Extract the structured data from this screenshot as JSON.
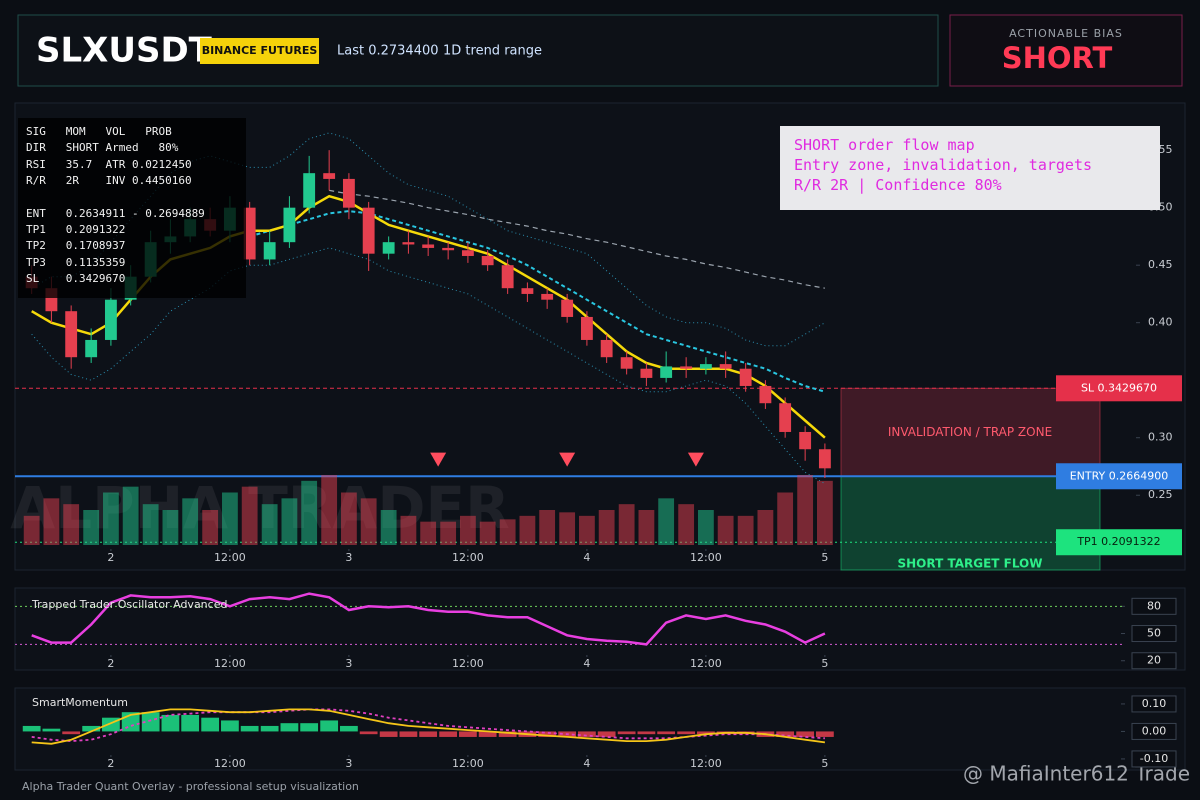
{
  "header": {
    "symbol": "SLXUSDT",
    "exchange": "BINANCE FUTURES",
    "last": "Last 0.2734400",
    "range": "1D trend range"
  },
  "bias": {
    "caption": "ACTIONABLE BIAS",
    "value": "SHORT"
  },
  "info_panel": {
    "rows": [
      "SIG   MOM   VOL   PROB",
      "DIR   SHORT Armed   80%",
      "RSI   35.7  ATR 0.0212450",
      "R/R   2R    INV 0.4450160"
    ],
    "levels": [
      "ENT   0.2634911 - 0.2694889",
      "TP1   0.2091322",
      "TP2   0.1708937",
      "TP3   0.1135359",
      "SL    0.3429670"
    ]
  },
  "annotation": {
    "lines": [
      "SHORT order flow map",
      "Entry zone, invalidation, targets",
      "R/R 2R | Confidence 80%"
    ]
  },
  "watermark": "ALPHA TRADER",
  "footer": "Alpha Trader Quant Overlay - professional setup visualization",
  "credit": "@ MafiaInter612 Trade",
  "chart_data": [
    {
      "type": "candlestick",
      "up_color": "#22c98f",
      "down_color": "#e5404f",
      "x": [
        1.667,
        1.75,
        1.833,
        1.917,
        2,
        2.083,
        2.167,
        2.25,
        2.333,
        2.417,
        2.5,
        2.583,
        2.667,
        2.75,
        2.833,
        2.917,
        3,
        3.083,
        3.167,
        3.25,
        3.333,
        3.417,
        3.5,
        3.583,
        3.667,
        3.75,
        3.833,
        3.917,
        4,
        4.083,
        4.167,
        4.25,
        4.333,
        4.417,
        4.5,
        4.583,
        4.667,
        4.75,
        4.833,
        4.917,
        5
      ],
      "open": [
        0.44,
        0.43,
        0.41,
        0.37,
        0.385,
        0.42,
        0.44,
        0.47,
        0.475,
        0.49,
        0.48,
        0.5,
        0.455,
        0.47,
        0.5,
        0.53,
        0.525,
        0.5,
        0.46,
        0.47,
        0.468,
        0.465,
        0.463,
        0.458,
        0.45,
        0.43,
        0.425,
        0.42,
        0.405,
        0.385,
        0.37,
        0.36,
        0.352,
        0.362,
        0.36,
        0.364,
        0.36,
        0.345,
        0.33,
        0.305,
        0.29
      ],
      "high": [
        0.45,
        0.44,
        0.415,
        0.395,
        0.43,
        0.45,
        0.48,
        0.49,
        0.5,
        0.5,
        0.51,
        0.505,
        0.48,
        0.51,
        0.545,
        0.55,
        0.53,
        0.505,
        0.475,
        0.48,
        0.475,
        0.47,
        0.47,
        0.463,
        0.455,
        0.435,
        0.43,
        0.425,
        0.41,
        0.39,
        0.375,
        0.365,
        0.375,
        0.37,
        0.37,
        0.375,
        0.365,
        0.35,
        0.335,
        0.31,
        0.295
      ],
      "low": [
        0.425,
        0.4,
        0.36,
        0.365,
        0.38,
        0.415,
        0.435,
        0.46,
        0.47,
        0.475,
        0.47,
        0.45,
        0.45,
        0.465,
        0.495,
        0.515,
        0.49,
        0.445,
        0.455,
        0.46,
        0.458,
        0.455,
        0.452,
        0.445,
        0.425,
        0.418,
        0.412,
        0.4,
        0.38,
        0.365,
        0.355,
        0.345,
        0.348,
        0.352,
        0.355,
        0.352,
        0.34,
        0.325,
        0.3,
        0.28,
        0.265
      ],
      "close": [
        0.43,
        0.41,
        0.37,
        0.385,
        0.42,
        0.44,
        0.47,
        0.475,
        0.49,
        0.48,
        0.5,
        0.455,
        0.47,
        0.5,
        0.53,
        0.525,
        0.5,
        0.46,
        0.47,
        0.468,
        0.465,
        0.463,
        0.458,
        0.45,
        0.43,
        0.425,
        0.42,
        0.405,
        0.385,
        0.37,
        0.36,
        0.352,
        0.362,
        0.36,
        0.364,
        0.36,
        0.345,
        0.33,
        0.305,
        0.29,
        0.2734
      ],
      "volume": [
        25,
        40,
        35,
        30,
        45,
        50,
        35,
        30,
        40,
        30,
        45,
        50,
        35,
        40,
        55,
        60,
        45,
        40,
        30,
        25,
        20,
        20,
        25,
        20,
        22,
        25,
        30,
        28,
        25,
        30,
        35,
        30,
        40,
        35,
        30,
        25,
        25,
        30,
        45,
        60,
        55
      ],
      "lines": [
        {
          "color": "#2a8fb0",
          "dash": "1 3",
          "width": 1,
          "values": [
            0.43,
            0.44,
            0.44,
            0.45,
            0.47,
            0.49,
            0.51,
            0.53,
            0.54,
            0.545,
            0.54,
            0.535,
            0.535,
            0.545,
            0.56,
            0.565,
            0.56,
            0.545,
            0.53,
            0.52,
            0.515,
            0.51,
            0.5,
            0.49,
            0.48,
            0.475,
            0.47,
            0.465,
            0.46,
            0.445,
            0.43,
            0.415,
            0.405,
            0.4,
            0.4,
            0.395,
            0.385,
            0.38,
            0.38,
            0.39,
            0.4
          ]
        },
        {
          "color": "#2a8fb0",
          "dash": "1 3",
          "width": 1,
          "values": [
            0.39,
            0.37,
            0.355,
            0.35,
            0.36,
            0.375,
            0.39,
            0.41,
            0.42,
            0.43,
            0.445,
            0.45,
            0.45,
            0.455,
            0.46,
            0.465,
            0.46,
            0.455,
            0.445,
            0.44,
            0.435,
            0.43,
            0.425,
            0.415,
            0.405,
            0.395,
            0.385,
            0.375,
            0.365,
            0.355,
            0.345,
            0.34,
            0.34,
            0.345,
            0.35,
            0.345,
            0.33,
            0.31,
            0.29,
            0.27,
            0.26
          ]
        },
        {
          "color": "#9aa3ad",
          "dash": "5 4",
          "width": 1.2,
          "values": [
            null,
            null,
            null,
            null,
            null,
            null,
            null,
            null,
            null,
            null,
            null,
            null,
            null,
            null,
            null,
            0.515,
            0.512,
            0.51,
            0.507,
            0.504,
            0.5,
            0.497,
            0.494,
            0.49,
            0.487,
            0.484,
            0.48,
            0.477,
            0.473,
            0.47,
            0.466,
            0.462,
            0.458,
            0.455,
            0.451,
            0.448,
            0.444,
            0.44,
            0.437,
            0.433,
            0.43
          ]
        },
        {
          "color": "#29c6e0",
          "dash": "4 3",
          "width": 2,
          "values": [
            null,
            null,
            null,
            null,
            null,
            null,
            null,
            null,
            null,
            null,
            null,
            0.475,
            0.48,
            0.485,
            0.49,
            0.495,
            0.497,
            0.495,
            0.49,
            0.485,
            0.48,
            0.475,
            0.47,
            0.465,
            0.458,
            0.45,
            0.44,
            0.43,
            0.42,
            0.41,
            0.4,
            0.39,
            0.385,
            0.38,
            0.375,
            0.37,
            0.365,
            0.36,
            0.352,
            0.345,
            0.34
          ]
        },
        {
          "color": "#f5d90a",
          "dash": "none",
          "width": 2.5,
          "values": [
            0.41,
            0.4,
            0.395,
            0.39,
            0.4,
            0.42,
            0.44,
            0.455,
            0.46,
            0.465,
            0.475,
            0.48,
            0.48,
            0.485,
            0.5,
            0.51,
            0.505,
            0.495,
            0.485,
            0.48,
            0.475,
            0.47,
            0.465,
            0.46,
            0.45,
            0.44,
            0.43,
            0.42,
            0.405,
            0.39,
            0.375,
            0.365,
            0.36,
            0.36,
            0.36,
            0.36,
            0.355,
            0.345,
            0.33,
            0.315,
            0.3
          ]
        }
      ],
      "markers": {
        "color": "#ff4d5e",
        "x": [
          3.375,
          3.917,
          4.458
        ],
        "values": [
          0.281,
          0.281,
          0.281
        ]
      },
      "zones": [
        {
          "label": "INVALIDATION / TRAP ZONE",
          "color": "#c2334a",
          "text_color": "#ff5a6e",
          "range": [
            0.342967,
            0.26649
          ]
        },
        {
          "label": "SHORT TARGET FLOW",
          "color": "#15c26e",
          "text_color": "#2ef08a",
          "range": [
            0.26649,
            0.185
          ]
        }
      ],
      "levels": [
        {
          "label": "SL 0.3429670",
          "value": 0.342967,
          "color": "#e5304a",
          "text_color": "#ffffff",
          "dash": "4 3"
        },
        {
          "label": "ENTRY 0.2664900",
          "value": 0.26649,
          "color": "#2f7de1",
          "text_color": "#ffffff",
          "dash": "none"
        },
        {
          "label": "TP1 0.2091322",
          "value": 0.2091322,
          "color": "#1de37e",
          "text_color": "#07210f",
          "dash": "2 3"
        }
      ],
      "xlim": [
        1.597,
        6.324
      ],
      "ylim": [
        0.185,
        0.591
      ],
      "xticks": [
        2,
        {
          "value": 2.5,
          "label": "12:00"
        },
        3,
        {
          "value": 3.5,
          "label": "12:00"
        },
        4,
        {
          "value": 4.5,
          "label": "12:00"
        },
        5
      ],
      "yticks": [
        {
          "value": 0.25,
          "label": "0.25"
        },
        {
          "value": 0.3,
          "label": "0.30"
        },
        {
          "value": 0.4,
          "label": "0.40"
        },
        {
          "value": 0.45,
          "label": "0.45"
        },
        {
          "value": 0.5,
          "label": "0.50"
        },
        {
          "value": 0.55,
          "label": "0.55"
        }
      ]
    },
    {
      "type": "line",
      "title": "Trapped Trader Oscillator Advanced",
      "x": [
        1.667,
        1.75,
        1.833,
        1.917,
        2,
        2.083,
        2.167,
        2.25,
        2.333,
        2.417,
        2.5,
        2.583,
        2.667,
        2.75,
        2.833,
        2.917,
        3,
        3.083,
        3.167,
        3.25,
        3.333,
        3.417,
        3.5,
        3.583,
        3.667,
        3.75,
        3.833,
        3.917,
        4,
        4.083,
        4.167,
        4.25,
        4.333,
        4.417,
        4.5,
        4.583,
        4.667,
        4.75,
        4.833,
        4.917,
        5
      ],
      "lines": [
        {
          "color": "#e83fe0",
          "dash": "none",
          "width": 2.5,
          "values": [
            48,
            40,
            40,
            60,
            84,
            92,
            90,
            90,
            91,
            88,
            80,
            88,
            90,
            88,
            94,
            90,
            76,
            80,
            79,
            80,
            76,
            74,
            74,
            70,
            68,
            68,
            58,
            48,
            44,
            42,
            41,
            38,
            62,
            70,
            66,
            70,
            64,
            60,
            52,
            40,
            50
          ]
        }
      ],
      "levels": [
        {
          "value": 80,
          "color": "#6fcf5a",
          "dash": "2 3"
        },
        {
          "value": 38,
          "color": "#d45bd4",
          "dash": "2 3"
        }
      ],
      "xlim": [
        1.597,
        6.261
      ],
      "ylim": [
        12,
        98
      ],
      "xticks": [
        2,
        {
          "value": 2.5,
          "label": "12:00"
        },
        3,
        {
          "value": 3.5,
          "label": "12:00"
        },
        4,
        {
          "value": 4.5,
          "label": "12:00"
        },
        5
      ],
      "yticks": [
        20,
        50,
        80
      ]
    },
    {
      "type": "bar",
      "title": "SmartMomentum",
      "up_color": "#1fe08a",
      "down_color": "#e5404f",
      "x": [
        1.667,
        1.75,
        1.833,
        1.917,
        2,
        2.083,
        2.167,
        2.25,
        2.333,
        2.417,
        2.5,
        2.583,
        2.667,
        2.75,
        2.833,
        2.917,
        3,
        3.083,
        3.167,
        3.25,
        3.333,
        3.417,
        3.5,
        3.583,
        3.667,
        3.75,
        3.833,
        3.917,
        4,
        4.083,
        4.167,
        4.25,
        4.333,
        4.417,
        4.5,
        4.583,
        4.667,
        4.75,
        4.833,
        4.917,
        5
      ],
      "values": [
        0.02,
        0.01,
        -0.01,
        0.02,
        0.05,
        0.07,
        0.07,
        0.06,
        0.06,
        0.05,
        0.04,
        0.02,
        0.02,
        0.03,
        0.03,
        0.04,
        0.02,
        -0.01,
        -0.02,
        -0.02,
        -0.02,
        -0.02,
        -0.02,
        -0.02,
        -0.02,
        -0.02,
        -0.02,
        -0.02,
        -0.02,
        -0.02,
        -0.01,
        -0.01,
        -0.01,
        -0.01,
        -0.01,
        -0.01,
        -0.01,
        -0.02,
        -0.02,
        -0.02,
        -0.02
      ],
      "lines": [
        {
          "color": "#e040c0",
          "dash": "3 3",
          "width": 1.8,
          "values": [
            -0.02,
            -0.03,
            -0.035,
            -0.03,
            -0.01,
            0.02,
            0.04,
            0.06,
            0.065,
            0.07,
            0.07,
            0.07,
            0.07,
            0.075,
            0.08,
            0.08,
            0.075,
            0.065,
            0.05,
            0.04,
            0.03,
            0.02,
            0.015,
            0.01,
            0.005,
            0,
            -0.005,
            -0.01,
            -0.015,
            -0.02,
            -0.025,
            -0.025,
            -0.025,
            -0.02,
            -0.015,
            -0.01,
            -0.01,
            -0.01,
            -0.015,
            -0.02,
            -0.025
          ]
        },
        {
          "color": "#f5c518",
          "dash": "none",
          "width": 1.8,
          "values": [
            -0.04,
            -0.045,
            -0.03,
            0,
            0.03,
            0.06,
            0.07,
            0.08,
            0.08,
            0.075,
            0.07,
            0.07,
            0.075,
            0.08,
            0.08,
            0.075,
            0.06,
            0.045,
            0.03,
            0.02,
            0.015,
            0.01,
            0.005,
            0,
            -0.005,
            -0.01,
            -0.015,
            -0.02,
            -0.025,
            -0.03,
            -0.035,
            -0.035,
            -0.03,
            -0.02,
            -0.01,
            -0.005,
            -0.005,
            -0.01,
            -0.02,
            -0.03,
            -0.04
          ]
        }
      ],
      "xlim": [
        1.597,
        6.261
      ],
      "ylim": [
        -0.133,
        0.158
      ],
      "xticks": [
        2,
        {
          "value": 2.5,
          "label": "12:00"
        },
        3,
        {
          "value": 3.5,
          "label": "12:00"
        },
        4,
        {
          "value": 4.5,
          "label": "12:00"
        },
        5
      ],
      "yticks": [
        {
          "value": -0.1,
          "label": "-0.10"
        },
        {
          "value": 0,
          "label": "0.00"
        },
        {
          "value": 0.1,
          "label": "0.10"
        }
      ]
    }
  ]
}
